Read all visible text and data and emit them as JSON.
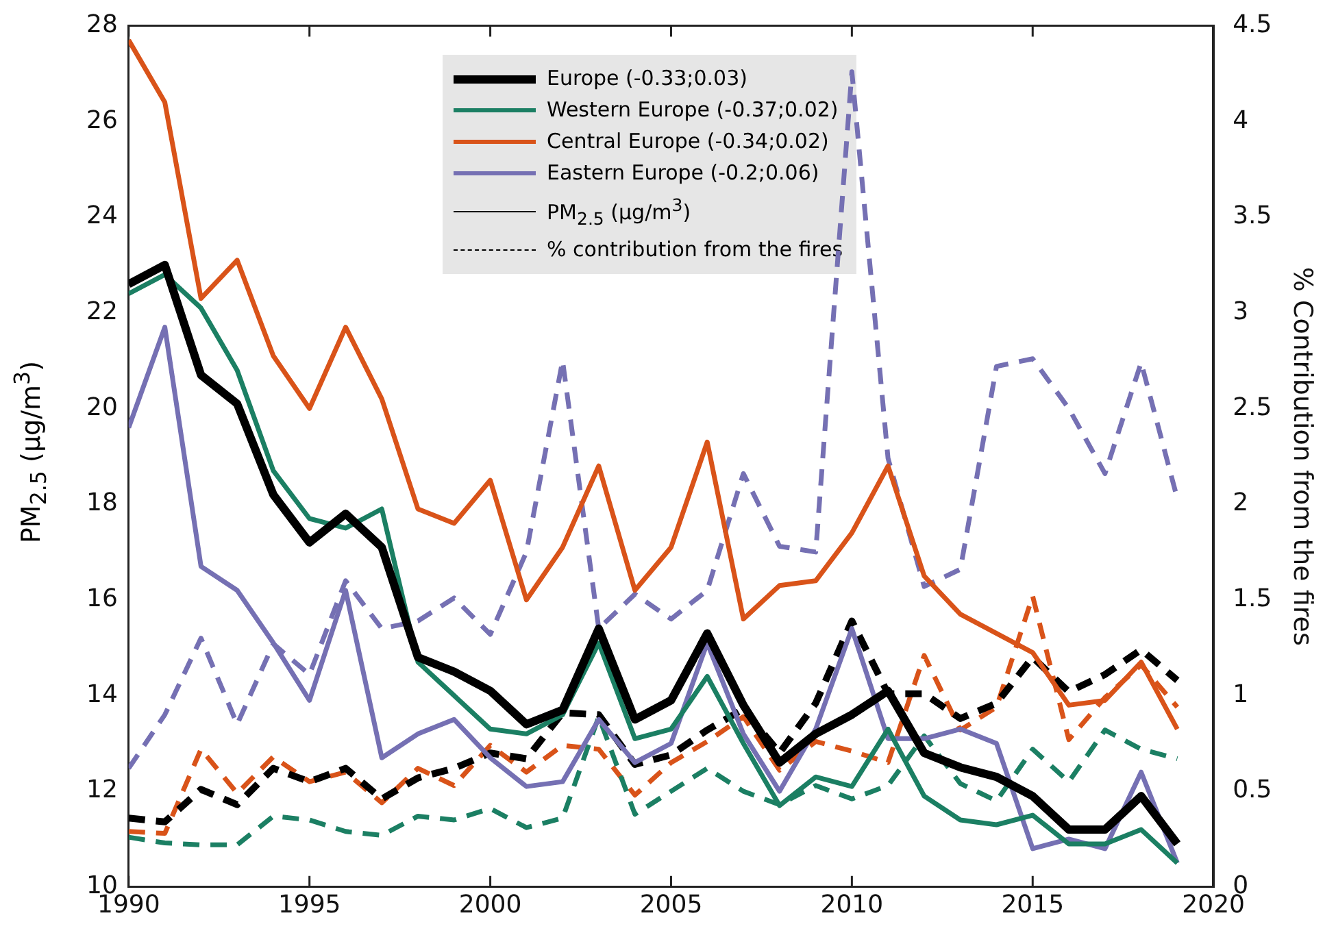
{
  "chart_data": {
    "type": "line",
    "ylabel": "PM$_{2.5}$ (µg/m$^{3}$)",
    "y2label": "% Contribution from the fires",
    "x": [
      1990,
      1991,
      1992,
      1993,
      1994,
      1995,
      1996,
      1997,
      1998,
      1999,
      2000,
      2001,
      2002,
      2003,
      2004,
      2005,
      2006,
      2007,
      2008,
      2009,
      2010,
      2011,
      2012,
      2013,
      2014,
      2015,
      2016,
      2017,
      2018,
      2019
    ],
    "xlim": [
      1990,
      2020
    ],
    "xticks": [
      1990,
      1995,
      2000,
      2005,
      2010,
      2015,
      2020
    ],
    "ylim": [
      10,
      28
    ],
    "yticks": [
      10,
      12,
      14,
      16,
      18,
      20,
      22,
      24,
      26,
      28
    ],
    "y2lim": [
      0,
      4.5
    ],
    "y2ticks": [
      0,
      0.5,
      1,
      1.5,
      2,
      2.5,
      3,
      3.5,
      4,
      4.5
    ],
    "grid": false,
    "legend": "top",
    "marker": "none",
    "series": [
      {
        "name": "Europe (-0.33;0.03)",
        "color": "#000000",
        "line_style": "solid",
        "values": [
          22.6,
          23.0,
          20.7,
          20.1,
          18.2,
          17.2,
          17.8,
          17.1,
          14.8,
          14.5,
          14.1,
          13.4,
          13.7,
          15.4,
          13.5,
          13.9,
          15.3,
          13.8,
          12.6,
          13.2,
          13.6,
          14.1,
          12.8,
          12.5,
          12.3,
          11.9,
          11.2,
          11.2,
          11.9,
          10.9
        ]
      },
      {
        "name": "Western Europe (-0.37;0.02)",
        "color": "#1b7f63",
        "line_style": "solid",
        "values": [
          22.4,
          22.8,
          22.1,
          20.8,
          18.7,
          17.7,
          17.5,
          17.9,
          14.7,
          14.0,
          13.3,
          13.2,
          13.6,
          15.1,
          13.1,
          13.3,
          14.4,
          13.0,
          11.7,
          12.3,
          12.1,
          13.3,
          11.9,
          11.4,
          11.3,
          11.5,
          10.9,
          10.9,
          11.2,
          10.5
        ]
      },
      {
        "name": "Central Europe (-0.34;0.02)",
        "color": "#d95319",
        "line_style": "solid",
        "values": [
          27.7,
          26.4,
          22.3,
          23.1,
          21.1,
          20.0,
          21.7,
          20.2,
          17.9,
          17.6,
          18.5,
          16.0,
          17.1,
          18.8,
          16.2,
          17.1,
          19.3,
          15.6,
          16.3,
          16.4,
          17.4,
          18.8,
          16.5,
          15.7,
          15.3,
          14.9,
          13.8,
          13.9,
          14.7,
          13.3
        ]
      },
      {
        "name": "Eastern Europe (-0.2;0.06)",
        "color": "#7570b3",
        "line_style": "solid",
        "values": [
          19.6,
          21.7,
          16.7,
          16.2,
          15.1,
          13.9,
          16.2,
          12.7,
          13.2,
          13.5,
          12.7,
          12.1,
          12.2,
          13.5,
          12.6,
          13.0,
          15.1,
          13.2,
          12.0,
          13.3,
          15.4,
          13.1,
          13.1,
          13.3,
          13.0,
          10.8,
          11.0,
          10.8,
          12.4,
          10.5
        ]
      },
      {
        "color": "#000000",
        "axis": "y2",
        "line_style": "dashed",
        "values": [
          0.36,
          0.34,
          0.51,
          0.43,
          0.62,
          0.55,
          0.62,
          0.46,
          0.57,
          0.62,
          0.7,
          0.67,
          0.91,
          0.9,
          0.64,
          0.69,
          0.82,
          0.93,
          0.7,
          0.96,
          1.39,
          1.01,
          1.01,
          0.88,
          0.96,
          1.2,
          1.02,
          1.11,
          1.24,
          1.08
        ]
      },
      {
        "color": "#1b7f63",
        "axis": "y2",
        "line_style": "dashed",
        "values": [
          0.26,
          0.23,
          0.22,
          0.22,
          0.37,
          0.35,
          0.29,
          0.27,
          0.37,
          0.35,
          0.41,
          0.31,
          0.36,
          0.89,
          0.38,
          0.5,
          0.62,
          0.5,
          0.43,
          0.53,
          0.46,
          0.53,
          0.79,
          0.54,
          0.45,
          0.72,
          0.55,
          0.82,
          0.72,
          0.67
        ]
      },
      {
        "color": "#d95319",
        "axis": "y2",
        "line_style": "dashed",
        "values": [
          0.29,
          0.28,
          0.72,
          0.49,
          0.68,
          0.55,
          0.6,
          0.44,
          0.62,
          0.53,
          0.74,
          0.6,
          0.74,
          0.72,
          0.48,
          0.65,
          0.76,
          0.89,
          0.61,
          0.76,
          0.71,
          0.65,
          1.21,
          0.82,
          0.94,
          1.52,
          0.77,
          0.99,
          1.16,
          0.94
        ]
      },
      {
        "color": "#7570b3",
        "axis": "y2",
        "line_style": "dashed",
        "values": [
          0.62,
          0.9,
          1.3,
          0.85,
          1.27,
          1.11,
          1.6,
          1.35,
          1.39,
          1.51,
          1.32,
          1.75,
          2.75,
          1.35,
          1.53,
          1.4,
          1.55,
          2.16,
          1.78,
          1.75,
          4.26,
          2.24,
          1.57,
          1.66,
          2.72,
          2.76,
          2.5,
          2.16,
          2.74,
          2.03
        ]
      },
      {
        "name": "PM$_{2.5}$ (µg/m$^{3}$)",
        "color": "#000000",
        "line_style": "solid",
        "values": [
          null,
          null,
          null,
          null,
          null,
          null,
          null,
          null,
          null,
          null,
          null,
          null,
          null,
          null,
          null,
          null,
          null,
          null,
          null,
          null,
          null,
          null,
          null,
          null,
          null,
          null,
          null,
          null,
          null,
          null
        ]
      },
      {
        "name": "% contribution from the fires",
        "color": "#000000",
        "line_style": "dashed",
        "values": [
          null,
          null,
          null,
          null,
          null,
          null,
          null,
          null,
          null,
          null,
          null,
          null,
          null,
          null,
          null,
          null,
          null,
          null,
          null,
          null,
          null,
          null,
          null,
          null,
          null,
          null,
          null,
          null,
          null,
          null
        ]
      }
    ]
  }
}
